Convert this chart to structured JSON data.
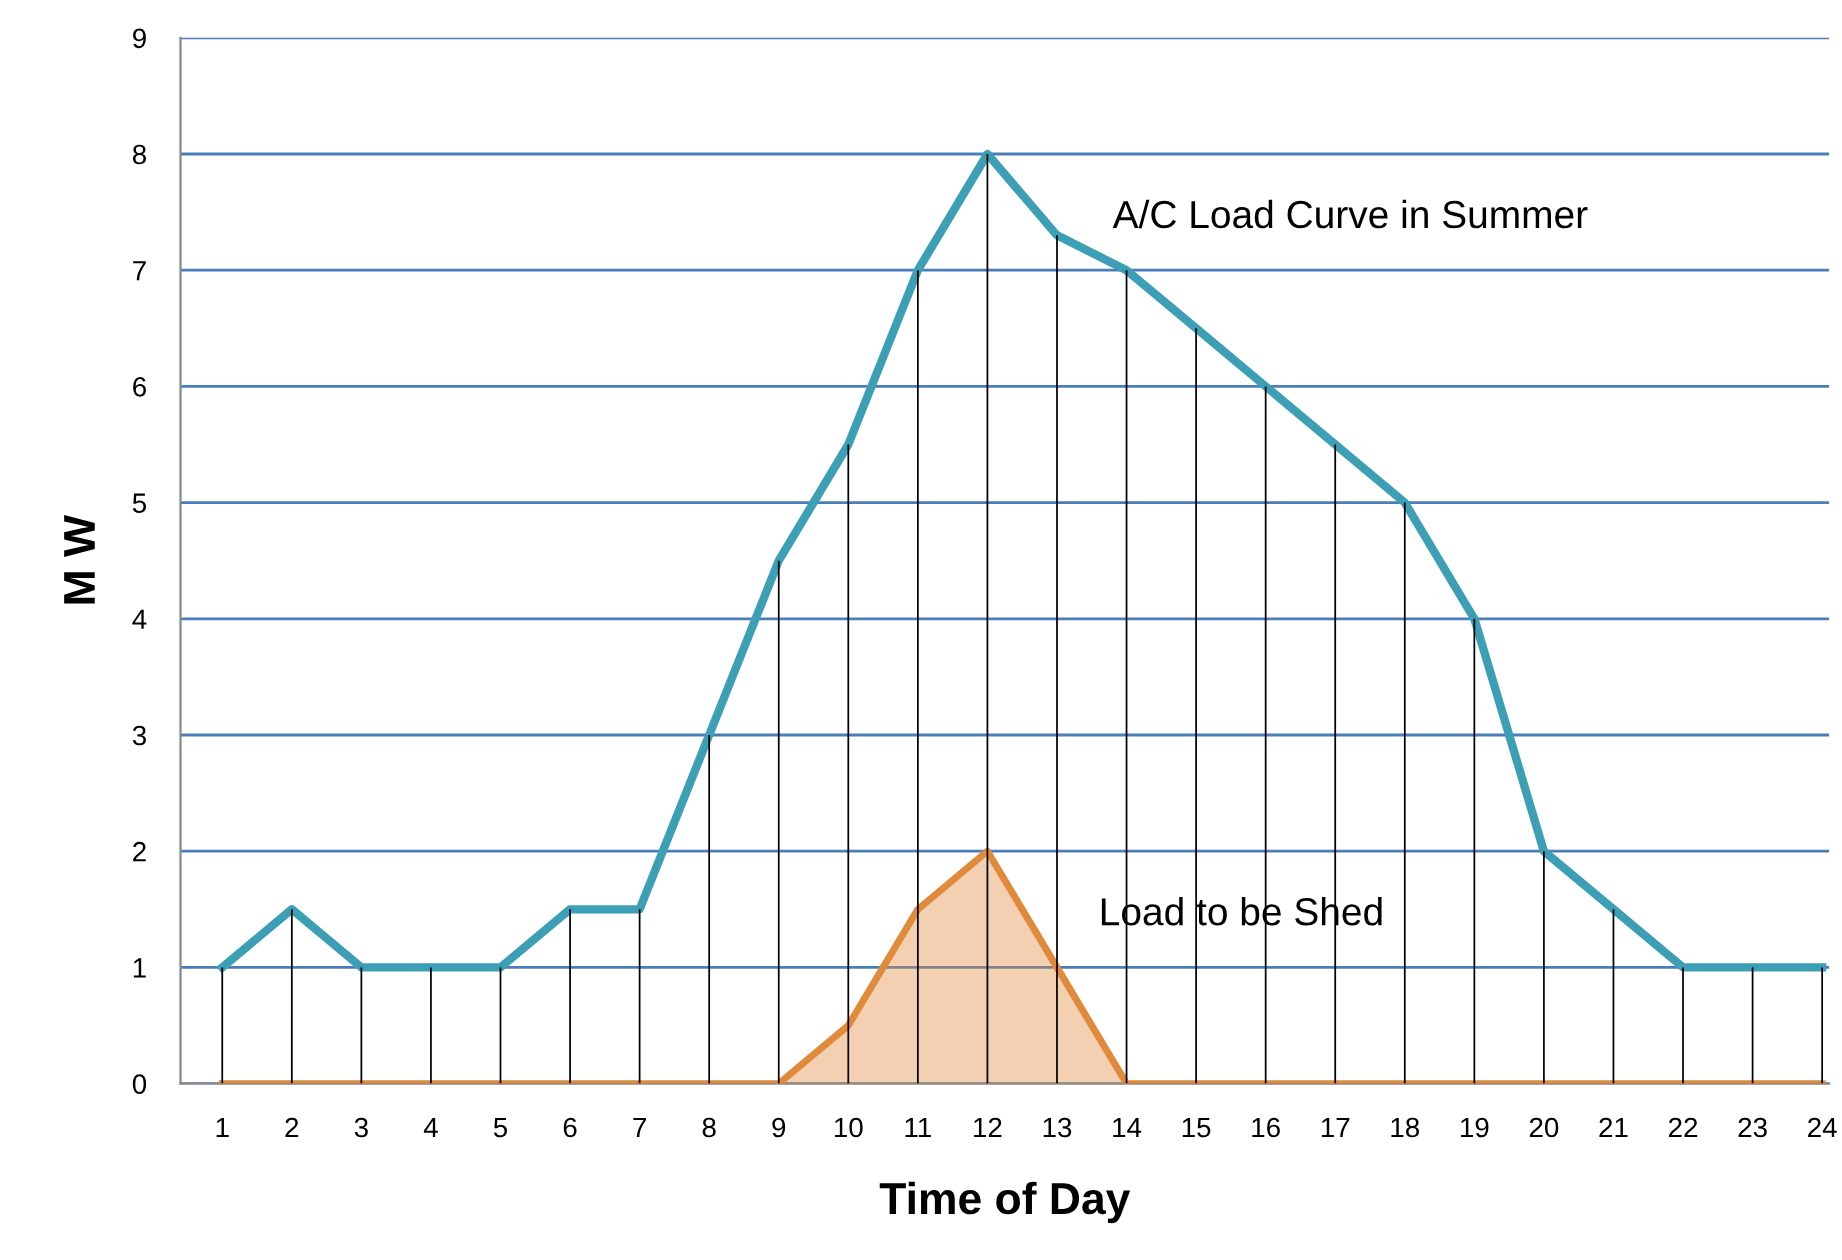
{
  "chart_data": {
    "type": "line",
    "xlabel": "Time of Day",
    "ylabel": "M W",
    "categories": [
      "1",
      "2",
      "3",
      "4",
      "5",
      "6",
      "7",
      "8",
      "9",
      "10",
      "11",
      "12",
      "13",
      "14",
      "15",
      "16",
      "17",
      "18",
      "19",
      "20",
      "21",
      "22",
      "23",
      "24"
    ],
    "series": [
      {
        "name": "A/C Load Curve in Summer",
        "color": "#3d9fb5",
        "values": [
          1,
          1.5,
          1,
          1,
          1,
          1.5,
          1.5,
          3,
          4.5,
          5.5,
          7,
          8,
          7.3,
          7,
          6.5,
          6,
          5.5,
          5,
          4,
          2,
          1.5,
          1,
          1,
          1
        ]
      },
      {
        "type": "bar",
        "color": "#000000",
        "values": [
          1,
          1.5,
          1,
          1,
          1,
          1.5,
          1.5,
          3,
          4.5,
          5.5,
          7,
          8,
          7.3,
          7,
          6.5,
          6,
          5.5,
          5,
          4,
          2,
          1.5,
          1,
          1,
          1
        ]
      },
      {
        "name": "Load to be Shed",
        "type": "area",
        "color": "#e08a3c",
        "values": [
          0,
          0,
          0,
          0,
          0,
          0,
          0,
          0,
          0,
          0.5,
          1.5,
          2,
          1,
          0,
          0,
          0,
          0,
          0,
          0,
          0,
          0,
          0,
          0,
          0
        ]
      }
    ],
    "ylim": [
      0,
      9
    ],
    "yticks": [
      0,
      1,
      2,
      3,
      4,
      5,
      6,
      7,
      8,
      9
    ],
    "grid": "y",
    "legend": false,
    "marker": "none",
    "line_style": "solid"
  }
}
